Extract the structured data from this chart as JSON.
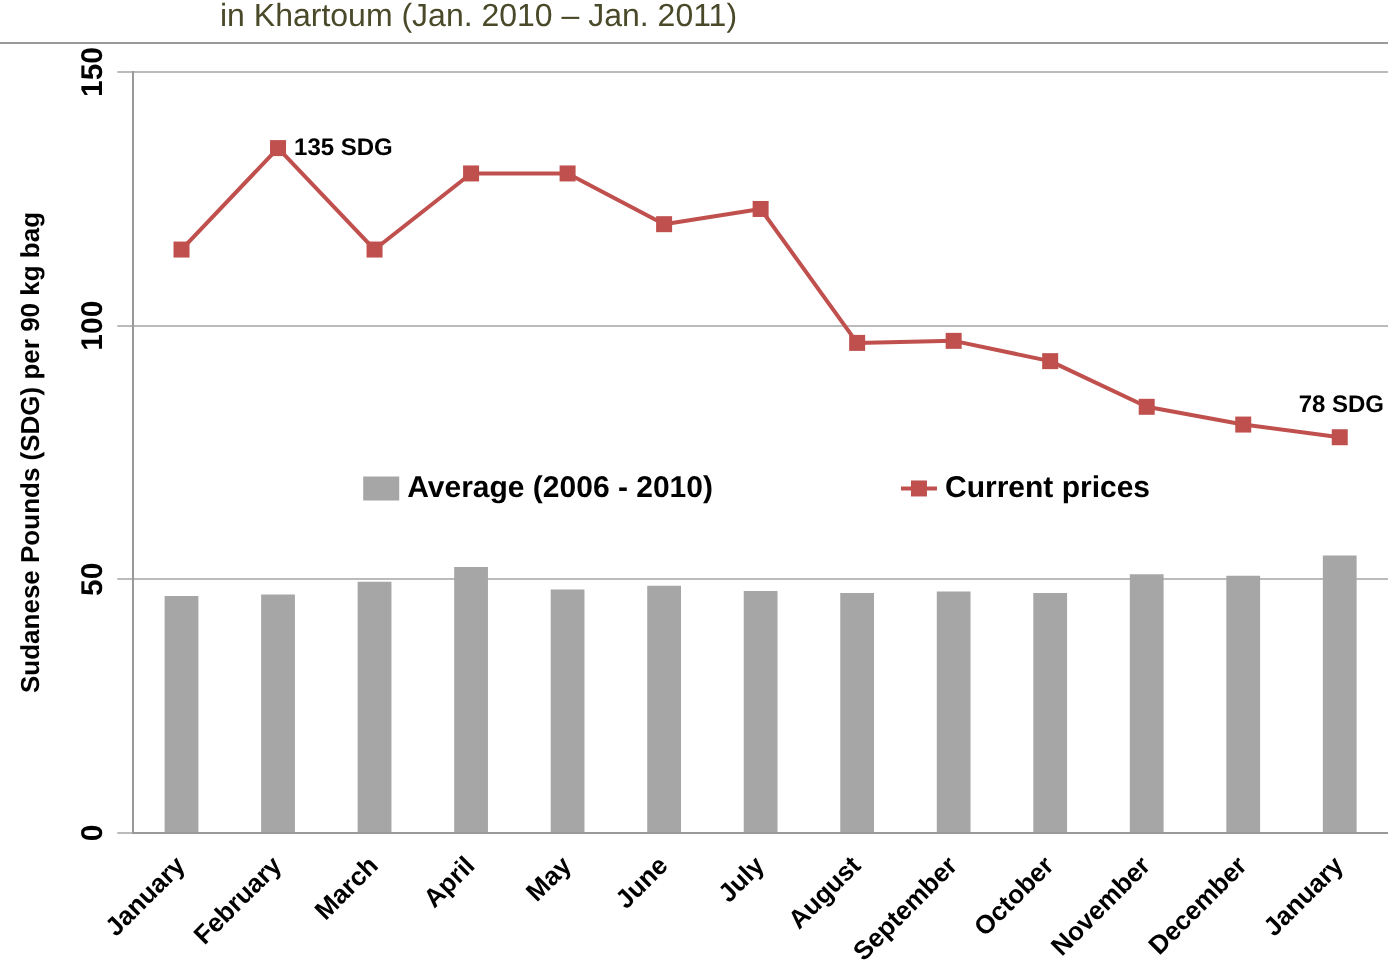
{
  "chart_data": {
    "type": "bar",
    "title": "in Khartoum (Jan. 2010 – Jan. 2011)",
    "ylabel": "Sudanese Pounds (SDG) per 90 kg bag",
    "categories": [
      "January",
      "February",
      "March",
      "April",
      "May",
      "June",
      "July",
      "August",
      "September",
      "October",
      "November",
      "December",
      "January"
    ],
    "series": [
      {
        "name": "Average (2006 - 2010)",
        "color": "#a6a6a6",
        "values": [
          46.7,
          47,
          49.5,
          52.4,
          48,
          48.7,
          47.7,
          47.3,
          47.6,
          47.3,
          51,
          50.7,
          54.7
        ]
      },
      {
        "name": "Current prices",
        "type": "line",
        "color": "#c0504d",
        "marker": "square",
        "values": [
          115,
          135,
          115,
          130,
          130,
          120,
          123,
          96.6,
          97,
          93,
          84,
          80.5,
          78
        ]
      }
    ],
    "ylim": [
      0,
      150
    ],
    "yticks": [
      0,
      50,
      100,
      150
    ],
    "grid": "y",
    "legend": "center",
    "annotations": [
      {
        "text": "135 SDG",
        "x": "February",
        "y": 135
      },
      "78 SDG"
    ]
  }
}
